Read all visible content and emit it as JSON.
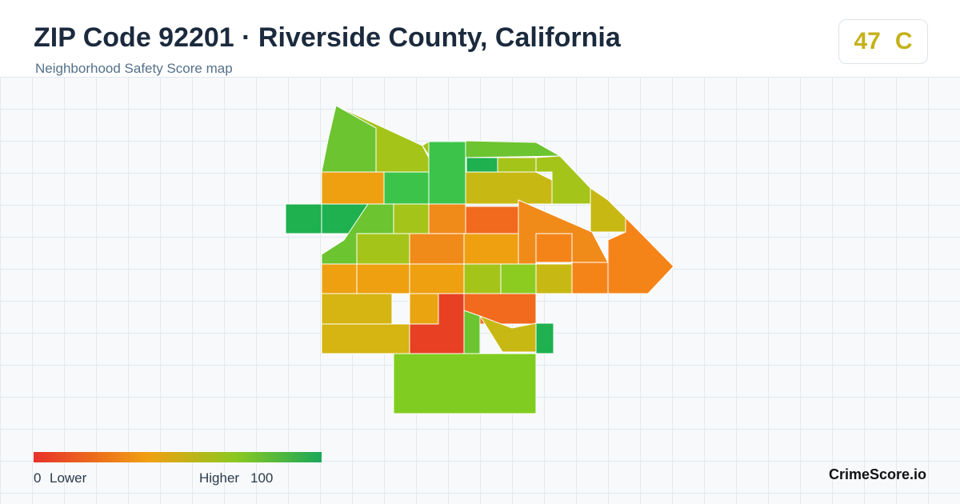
{
  "header": {
    "title": "ZIP Code 92201 · Riverside County, California",
    "subtitle": "Neighborhood Safety Score map"
  },
  "score": {
    "value": 47,
    "grade": "C"
  },
  "legend": {
    "min": 0,
    "min_label": "Lower",
    "max_label": "Higher",
    "max": 100
  },
  "brand": "CrimeScore.io"
}
